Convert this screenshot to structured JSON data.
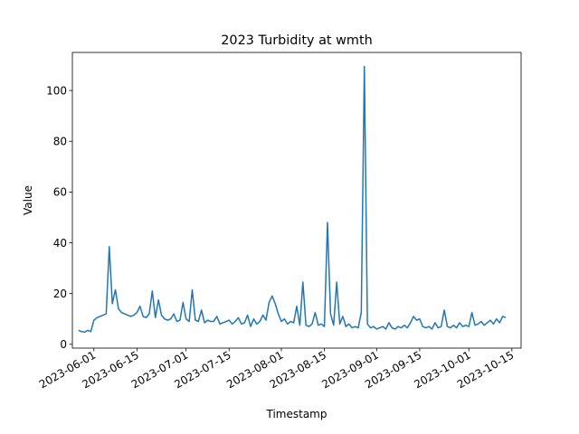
{
  "chart_data": {
    "type": "line",
    "title": "2023 Turbidity at wmth",
    "xlabel": "Timestamp",
    "ylabel": "Value",
    "x_axis_type": "date",
    "xlim": [
      "2023-05-25",
      "2023-10-18"
    ],
    "ylim": [
      -1.5,
      115
    ],
    "xticks": [
      "2023-06-01",
      "2023-06-15",
      "2023-07-01",
      "2023-07-15",
      "2023-08-01",
      "2023-08-15",
      "2023-09-01",
      "2023-09-15",
      "2023-10-01",
      "2023-10-15"
    ],
    "yticks": [
      0,
      20,
      40,
      60,
      80,
      100
    ],
    "grid": false,
    "legend": "none",
    "line_color": "#1f77b4",
    "series": [
      {
        "x": [
          "2023-05-27",
          "2023-05-28",
          "2023-05-29",
          "2023-05-30",
          "2023-05-31",
          "2023-06-01",
          "2023-06-02",
          "2023-06-03",
          "2023-06-04",
          "2023-06-05",
          "2023-06-06",
          "2023-06-07",
          "2023-06-08",
          "2023-06-09",
          "2023-06-10",
          "2023-06-11",
          "2023-06-12",
          "2023-06-13",
          "2023-06-14",
          "2023-06-15",
          "2023-06-16",
          "2023-06-17",
          "2023-06-18",
          "2023-06-19",
          "2023-06-20",
          "2023-06-21",
          "2023-06-22",
          "2023-06-23",
          "2023-06-24",
          "2023-06-25",
          "2023-06-26",
          "2023-06-27",
          "2023-06-28",
          "2023-06-29",
          "2023-06-30",
          "2023-07-01",
          "2023-07-02",
          "2023-07-03",
          "2023-07-04",
          "2023-07-05",
          "2023-07-06",
          "2023-07-07",
          "2023-07-08",
          "2023-07-09",
          "2023-07-10",
          "2023-07-11",
          "2023-07-12",
          "2023-07-13",
          "2023-07-14",
          "2023-07-15",
          "2023-07-16",
          "2023-07-17",
          "2023-07-18",
          "2023-07-19",
          "2023-07-20",
          "2023-07-21",
          "2023-07-22",
          "2023-07-23",
          "2023-07-24",
          "2023-07-25",
          "2023-07-26",
          "2023-07-27",
          "2023-07-28",
          "2023-07-29",
          "2023-07-30",
          "2023-07-31",
          "2023-08-01",
          "2023-08-02",
          "2023-08-03",
          "2023-08-04",
          "2023-08-05",
          "2023-08-06",
          "2023-08-07",
          "2023-08-08",
          "2023-08-09",
          "2023-08-10",
          "2023-08-11",
          "2023-08-12",
          "2023-08-13",
          "2023-08-14",
          "2023-08-15",
          "2023-08-16",
          "2023-08-17",
          "2023-08-18",
          "2023-08-19",
          "2023-08-20",
          "2023-08-21",
          "2023-08-22",
          "2023-08-23",
          "2023-08-24",
          "2023-08-25",
          "2023-08-26",
          "2023-08-27",
          "2023-08-28",
          "2023-08-29",
          "2023-08-30",
          "2023-08-31",
          "2023-09-01",
          "2023-09-02",
          "2023-09-03",
          "2023-09-04",
          "2023-09-05",
          "2023-09-06",
          "2023-09-07",
          "2023-09-08",
          "2023-09-09",
          "2023-09-10",
          "2023-09-11",
          "2023-09-12",
          "2023-09-13",
          "2023-09-14",
          "2023-09-15",
          "2023-09-16",
          "2023-09-17",
          "2023-09-18",
          "2023-09-19",
          "2023-09-20",
          "2023-09-21",
          "2023-09-22",
          "2023-09-23",
          "2023-09-24",
          "2023-09-25",
          "2023-09-26",
          "2023-09-27",
          "2023-09-28",
          "2023-09-29",
          "2023-09-30",
          "2023-10-01",
          "2023-10-02",
          "2023-10-03",
          "2023-10-04",
          "2023-10-05",
          "2023-10-06",
          "2023-10-07",
          "2023-10-08",
          "2023-10-09",
          "2023-10-10",
          "2023-10-11",
          "2023-10-12",
          "2023-10-13"
        ],
        "y": [
          5.5,
          5.0,
          4.8,
          5.5,
          5.0,
          9.5,
          10.5,
          11.0,
          11.5,
          12.0,
          38.5,
          16.0,
          21.5,
          14.0,
          12.5,
          12.0,
          11.5,
          11.0,
          11.5,
          12.5,
          15.0,
          11.0,
          10.5,
          12.0,
          21.0,
          10.5,
          17.5,
          11.5,
          10.0,
          9.5,
          10.0,
          12.0,
          9.0,
          9.5,
          16.5,
          10.0,
          9.0,
          21.5,
          9.5,
          9.0,
          13.5,
          8.5,
          9.5,
          9.0,
          9.0,
          11.0,
          8.0,
          8.5,
          9.0,
          9.5,
          8.0,
          9.0,
          10.5,
          8.0,
          8.5,
          11.5,
          7.0,
          10.0,
          8.0,
          9.0,
          11.5,
          9.5,
          16.5,
          19.0,
          16.0,
          12.0,
          9.0,
          10.0,
          8.0,
          9.0,
          8.5,
          15.0,
          7.5,
          24.5,
          7.5,
          7.0,
          8.0,
          12.5,
          7.5,
          8.0,
          7.0,
          48.0,
          12.0,
          7.5,
          24.5,
          8.0,
          11.0,
          7.0,
          8.0,
          6.5,
          7.0,
          6.5,
          12.5,
          109.5,
          8.0,
          6.5,
          7.0,
          6.0,
          6.5,
          7.0,
          6.0,
          8.5,
          6.5,
          6.0,
          7.0,
          6.5,
          7.5,
          6.5,
          8.5,
          11.0,
          9.5,
          10.0,
          7.0,
          6.5,
          7.0,
          6.0,
          8.5,
          6.5,
          7.0,
          13.5,
          7.0,
          6.5,
          7.5,
          6.5,
          8.5,
          7.0,
          7.5,
          7.0,
          12.5,
          7.5,
          8.0,
          9.0,
          7.5,
          8.5,
          9.5,
          8.0,
          10.0,
          8.5,
          11.0,
          10.5
        ]
      }
    ]
  }
}
